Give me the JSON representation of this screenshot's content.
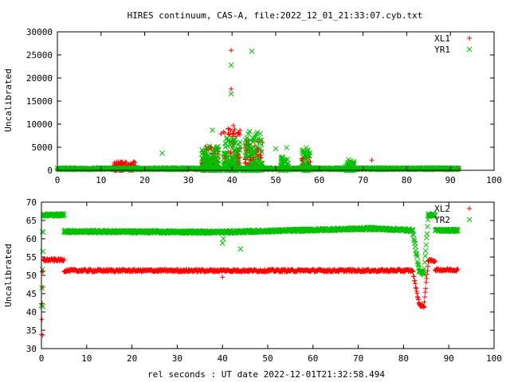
{
  "chart_data": [
    {
      "type": "scatter",
      "title": "HIRES continuum, CAS-A, file:2022_12_01_21:33:07.cyb.txt",
      "xlabel": "",
      "ylabel": "Uncalibrated",
      "xlim": [
        0,
        100
      ],
      "ylim": [
        0,
        30000
      ],
      "xticks": [
        0,
        10,
        20,
        30,
        40,
        50,
        60,
        70,
        80,
        90,
        100
      ],
      "yticks": [
        0,
        5000,
        10000,
        15000,
        20000,
        25000,
        30000
      ],
      "legend_position": "top-right",
      "grid": false,
      "series": [
        {
          "name": "XL1",
          "marker": "plus",
          "color": "#ff0000",
          "baseline": 300,
          "x_range": [
            0,
            92
          ],
          "bursts": [
            {
              "x": [
                33,
                37
              ],
              "max": 5200
            },
            {
              "x": [
                38,
                42
              ],
              "max": 9700
            },
            {
              "x": [
                43,
                47
              ],
              "max": 6500
            },
            {
              "x": [
                13,
                18
              ],
              "max": 1900
            },
            {
              "x": [
                56,
                58
              ],
              "max": 3000
            }
          ],
          "peaks": [
            {
              "x": 39.8,
              "y": 26000
            },
            {
              "x": 39.8,
              "y": 17600
            },
            {
              "x": 40.3,
              "y": 9700
            },
            {
              "x": 37.5,
              "y": 7900
            },
            {
              "x": 46.0,
              "y": 6200
            },
            {
              "x": 35.0,
              "y": 5100
            },
            {
              "x": 13.5,
              "y": 1800
            },
            {
              "x": 17.8,
              "y": 1700
            },
            {
              "x": 72.0,
              "y": 2200
            }
          ]
        },
        {
          "name": "YR1",
          "marker": "cross",
          "color": "#00c000",
          "baseline": 350,
          "x_range": [
            0,
            92
          ],
          "bursts": [
            {
              "x": [
                33,
                37
              ],
              "max": 5500
            },
            {
              "x": [
                38,
                42
              ],
              "max": 7000
            },
            {
              "x": [
                43,
                47
              ],
              "max": 8000
            },
            {
              "x": [
                51,
                53
              ],
              "max": 3000
            },
            {
              "x": [
                56,
                58
              ],
              "max": 4800
            },
            {
              "x": [
                66,
                68
              ],
              "max": 2000
            }
          ],
          "peaks": [
            {
              "x": 39.8,
              "y": 22800
            },
            {
              "x": 39.8,
              "y": 16600
            },
            {
              "x": 44.5,
              "y": 25800
            },
            {
              "x": 35.5,
              "y": 8700
            },
            {
              "x": 44.0,
              "y": 8400
            },
            {
              "x": 45.8,
              "y": 8200
            },
            {
              "x": 38.8,
              "y": 7000
            },
            {
              "x": 44.8,
              "y": 6300
            },
            {
              "x": 24.0,
              "y": 3700
            },
            {
              "x": 50.0,
              "y": 4700
            },
            {
              "x": 52.5,
              "y": 4900
            },
            {
              "x": 57.0,
              "y": 4900
            },
            {
              "x": 56.5,
              "y": 4000
            },
            {
              "x": 57.5,
              "y": 3400
            },
            {
              "x": 66.7,
              "y": 2300
            }
          ]
        }
      ]
    },
    {
      "type": "scatter",
      "title": "",
      "xlabel": "rel seconds : UT date 2022-12-01T21:32:58.494",
      "ylabel": "Uncalibrated",
      "xlim": [
        0,
        100
      ],
      "ylim": [
        30,
        70
      ],
      "xticks": [
        0,
        10,
        20,
        30,
        40,
        50,
        60,
        70,
        80,
        90,
        100
      ],
      "yticks": [
        30,
        35,
        40,
        45,
        50,
        55,
        60,
        65,
        70
      ],
      "legend_position": "top-right",
      "grid": false,
      "series": [
        {
          "name": "XL2",
          "marker": "plus",
          "color": "#ff0000",
          "segments": [
            {
              "x": [
                0,
                0.4
              ],
              "y": [
                33.5,
                51.0
              ]
            },
            {
              "x": [
                0.4,
                5
              ],
              "y": [
                54.2,
                54.2
              ]
            },
            {
              "x": [
                5,
                82
              ],
              "y": [
                51.3,
                51.3
              ]
            },
            {
              "x": [
                82,
                83.5
              ],
              "y": [
                51.3,
                42.0
              ]
            },
            {
              "x": [
                83.5,
                84.5
              ],
              "y": [
                42.0,
                41.5
              ]
            },
            {
              "x": [
                84.5,
                85.5
              ],
              "y": [
                41.5,
                54.0
              ]
            },
            {
              "x": [
                85.5,
                87
              ],
              "y": [
                54.0,
                54.0
              ]
            },
            {
              "x": [
                87,
                92
              ],
              "y": [
                51.5,
                51.5
              ]
            }
          ],
          "outliers": [
            {
              "x": 0.3,
              "y": 33.7
            },
            {
              "x": 40.0,
              "y": 49.5
            },
            {
              "x": 0.2,
              "y": 51.0
            }
          ]
        },
        {
          "name": "YR2",
          "marker": "cross",
          "color": "#00c000",
          "segments": [
            {
              "x": [
                0,
                0.4
              ],
              "y": [
                41.5,
                62.0
              ]
            },
            {
              "x": [
                0.4,
                5
              ],
              "y": [
                66.5,
                66.5
              ]
            },
            {
              "x": [
                5,
                40
              ],
              "y": [
                62.0,
                61.8
              ]
            },
            {
              "x": [
                40,
                73
              ],
              "y": [
                61.8,
                62.8
              ]
            },
            {
              "x": [
                73,
                82
              ],
              "y": [
                62.8,
                62.3
              ]
            },
            {
              "x": [
                82,
                83.5
              ],
              "y": [
                62.3,
                51.0
              ]
            },
            {
              "x": [
                83.5,
                84.5
              ],
              "y": [
                51.0,
                50.5
              ]
            },
            {
              "x": [
                84.5,
                85.5
              ],
              "y": [
                50.5,
                66.5
              ]
            },
            {
              "x": [
                85.5,
                87
              ],
              "y": [
                66.5,
                66.5
              ]
            },
            {
              "x": [
                87,
                92
              ],
              "y": [
                62.3,
                62.3
              ]
            }
          ],
          "outliers": [
            {
              "x": 0.3,
              "y": 41.5
            },
            {
              "x": 40.0,
              "y": 58.8
            },
            {
              "x": 40.2,
              "y": 60.0
            },
            {
              "x": 44.0,
              "y": 57.2
            },
            {
              "x": 0.2,
              "y": 62.0
            }
          ]
        }
      ]
    }
  ]
}
